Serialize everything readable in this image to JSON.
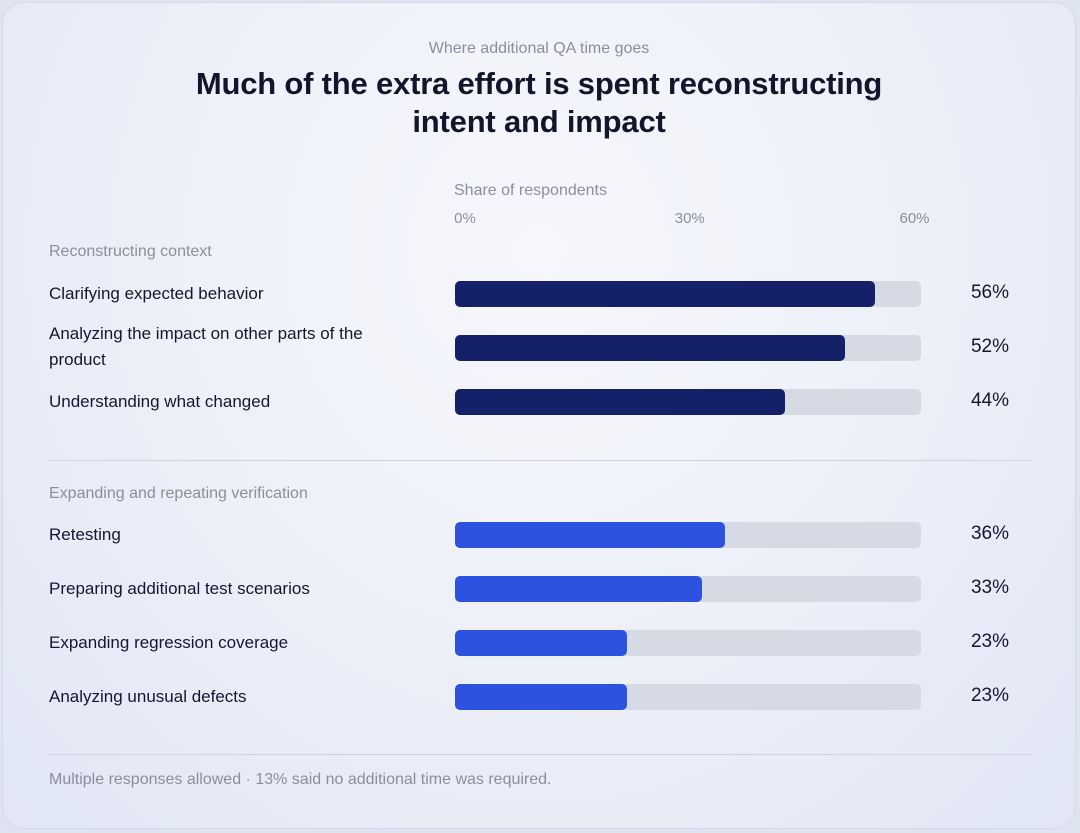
{
  "header": {
    "eyebrow": "Where additional QA time goes",
    "title_line1": "Much of the extra effort is spent reconstructing",
    "title_line2": "intent and impact"
  },
  "colors": {
    "context_bar": "#142169",
    "verification_bar": "#2d52e0",
    "track": "#d6dae4"
  },
  "footnote": "Multiple responses allowed · 13% said no additional time was required.",
  "chart_data": {
    "type": "bar",
    "orientation": "horizontal",
    "title": "Much of the extra effort is spent reconstructing intent and impact",
    "subtitle": "Where additional QA time goes",
    "xlabel": "Share of respondents",
    "ylabel": "",
    "xlim": [
      0,
      60
    ],
    "ticks": [
      {
        "value": 0,
        "label": "0%"
      },
      {
        "value": 30,
        "label": "30%"
      },
      {
        "value": 60,
        "label": "60%"
      }
    ],
    "grid": false,
    "groups": [
      {
        "name": "Reconstructing context",
        "color": "#142169",
        "items": [
          {
            "label": "Clarifying expected behavior",
            "value": 56,
            "value_label": "56%"
          },
          {
            "label": "Analyzing the impact on other parts of the product",
            "value": 52,
            "value_label": "52%"
          },
          {
            "label": "Understanding what changed",
            "value": 44,
            "value_label": "44%"
          }
        ]
      },
      {
        "name": "Expanding and repeating verification",
        "color": "#2d52e0",
        "items": [
          {
            "label": "Retesting",
            "value": 36,
            "value_label": "36%"
          },
          {
            "label": "Preparing additional test scenarios",
            "value": 33,
            "value_label": "33%"
          },
          {
            "label": "Expanding regression coverage",
            "value": 23,
            "value_label": "23%"
          },
          {
            "label": "Analyzing unusual defects",
            "value": 23,
            "value_label": "23%"
          }
        ]
      }
    ]
  }
}
